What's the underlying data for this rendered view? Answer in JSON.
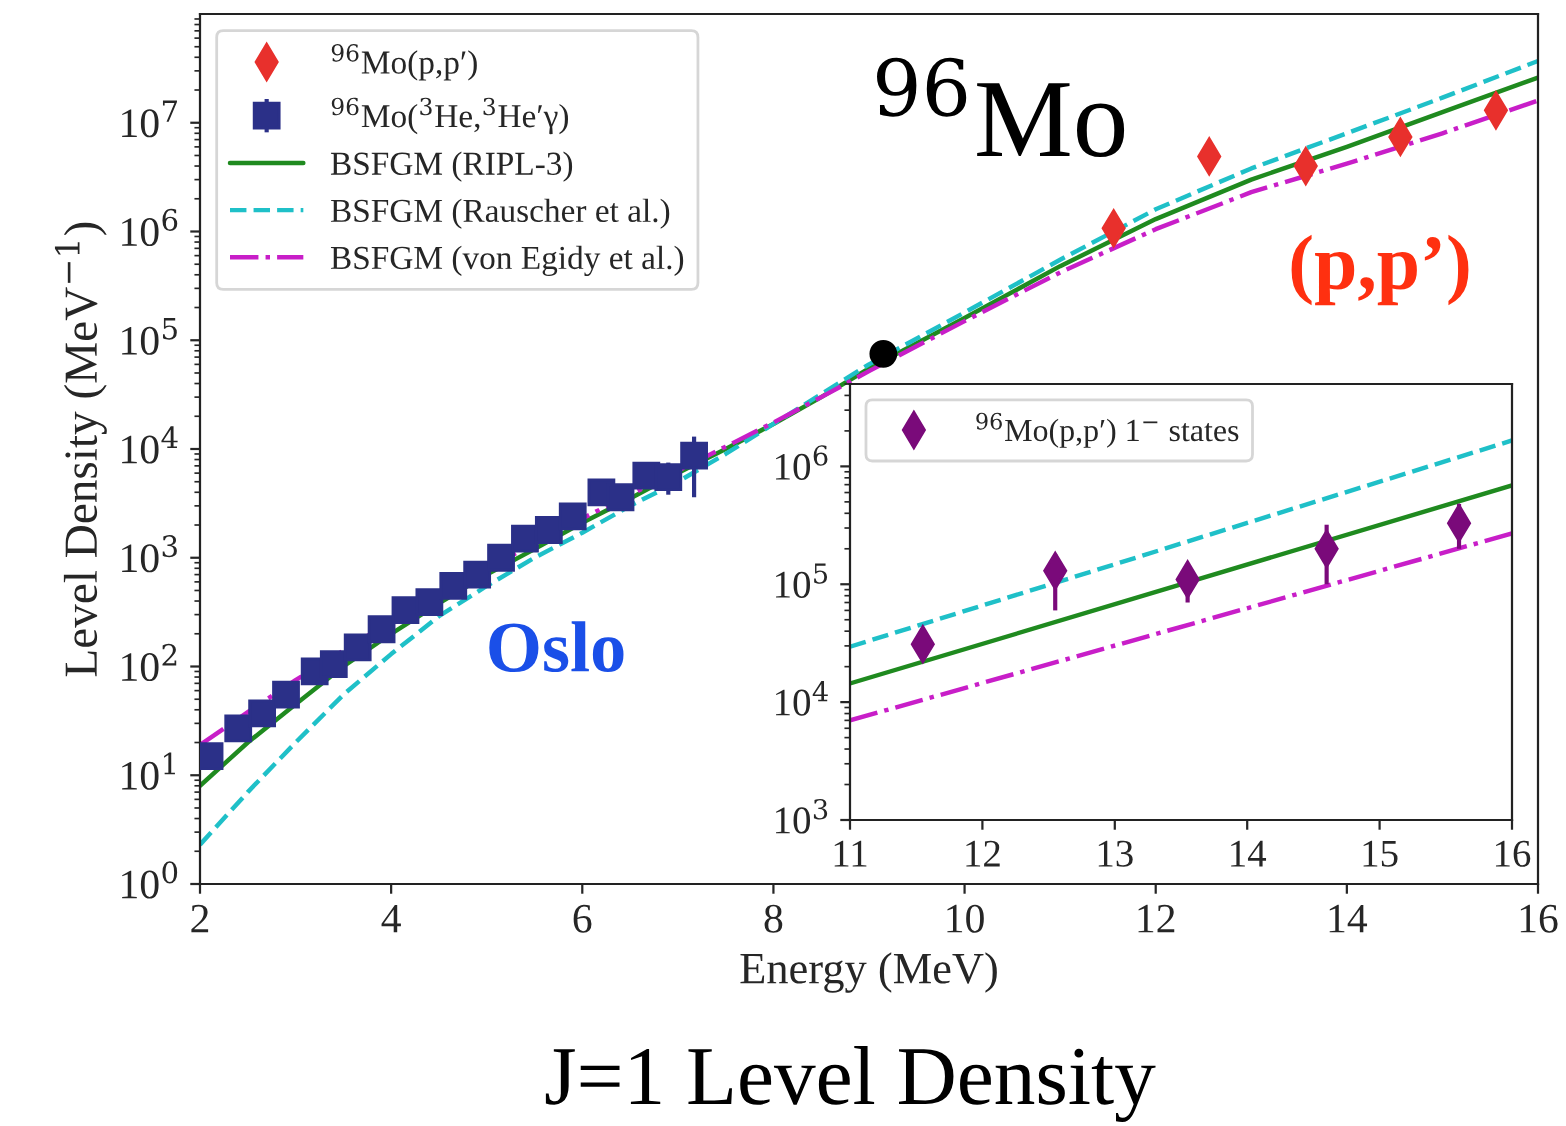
{
  "chart_data": [
    {
      "type": "scatter",
      "xlabel": "Energy (MeV)",
      "ylabel": "Level Density (MeV$^{−1}$)",
      "log": "y",
      "grid": false,
      "legend": "top left",
      "xlim": [
        2,
        16
      ],
      "xticks": [
        2,
        4,
        6,
        8,
        10,
        12,
        14,
        16
      ],
      "ylim": [
        1,
        100000000
      ],
      "yticks": [
        {
          "value": 1,
          "label": "10$^{0}$"
        },
        {
          "value": 10,
          "label": "10$^{1}$"
        },
        {
          "value": 100,
          "label": "10$^{2}$"
        },
        {
          "value": 1000,
          "label": "10$^{3}$"
        },
        {
          "value": 10000,
          "label": "10$^{4}$"
        },
        {
          "value": 100000,
          "label": "10$^{5}$"
        },
        {
          "value": 1000000,
          "label": "10$^{6}$"
        },
        {
          "value": 10000000,
          "label": "10$^{7}$"
        }
      ],
      "annotations": [
        "$^{96}$Mo",
        "(p,p’)",
        "Oslo",
        "J=1 Level Density"
      ],
      "series": [
        {
          "name": "$^{96}$Mo(p,p′)",
          "marker": "diamond",
          "color": "#e8302c",
          "x": [
            11.56,
            12.56,
            13.57,
            14.56,
            15.56
          ],
          "values": [
            1070000,
            4900000,
            4000000,
            7400000,
            13000000
          ]
        },
        {
          "name": "$^{96}$Mo($^{3}$He,$^{3}$He′γ)",
          "marker": "square",
          "color": "#2b3088",
          "x": [
            2.1,
            2.4,
            2.65,
            2.9,
            3.2,
            3.4,
            3.65,
            3.9,
            4.15,
            4.4,
            4.65,
            4.9,
            5.15,
            5.4,
            5.65,
            5.9,
            6.2,
            6.4,
            6.67,
            6.9,
            7.17
          ],
          "values": [
            15,
            27,
            37,
            55,
            90,
            105,
            150,
            220,
            330,
            390,
            550,
            700,
            1000,
            1500,
            1800,
            2400,
            4000,
            3600,
            5700,
            5500,
            8700
          ],
          "errors": [
            null,
            null,
            null,
            null,
            null,
            null,
            null,
            null,
            null,
            null,
            null,
            null,
            null,
            null,
            null,
            null,
            null,
            null,
            [
              4500,
              7000
            ],
            [
              3800,
              7500
            ],
            [
              3600,
              13000
            ]
          ]
        },
        {
          "marker": "circle",
          "color": "#000000",
          "x": [
            9.15
          ],
          "values": [
            75000
          ]
        },
        {
          "name": "BSFGM (RIPL-3)",
          "type": "line",
          "line_style": "solid",
          "color": "#1f8a1f",
          "x": [
            2,
            2.5,
            3,
            3.5,
            4,
            4.5,
            5,
            5.5,
            6,
            6.5,
            7,
            7.5,
            8,
            8.5,
            9,
            10,
            11,
            12,
            13,
            14,
            15,
            16
          ],
          "values": [
            8,
            20,
            45,
            100,
            200,
            380,
            700,
            1200,
            2100,
            3500,
            6000,
            10000,
            17000,
            30000,
            55000,
            160000,
            480000,
            1300000,
            3000000,
            6000000,
            12500000,
            26000000
          ]
        },
        {
          "name": "BSFGM (Rauscher et al.)",
          "type": "line",
          "line_style": "dashed",
          "color": "#1fc0c8",
          "x": [
            2,
            2.5,
            3,
            3.5,
            4,
            4.5,
            5,
            5.5,
            6,
            6.5,
            7,
            7.5,
            8,
            8.5,
            9,
            10,
            11,
            12,
            13,
            14,
            15,
            16
          ],
          "values": [
            2.3,
            7,
            20,
            55,
            130,
            290,
            550,
            1000,
            1700,
            3000,
            5000,
            9000,
            17000,
            32000,
            60000,
            180000,
            550000,
            1600000,
            3800000,
            8000000,
            17000000,
            37000000
          ]
        },
        {
          "name": "BSFGM (von Egidy et al.)",
          "type": "line",
          "line_style": "dashdot",
          "color": "#c81ec8",
          "x": [
            2,
            2.5,
            3,
            3.5,
            4,
            4.5,
            5,
            5.5,
            6,
            6.5,
            7,
            7.5,
            8,
            8.5,
            9,
            10,
            11,
            12,
            13,
            14,
            15,
            16
          ],
          "values": [
            19,
            38,
            75,
            140,
            260,
            460,
            800,
            1350,
            2300,
            3800,
            6300,
            10500,
            17500,
            30000,
            52000,
            150000,
            420000,
            1050000,
            2300000,
            4200000,
            8000000,
            16000000
          ]
        }
      ]
    },
    {
      "type": "scatter",
      "log": "y",
      "grid": false,
      "legend": "top left",
      "xlim": [
        11,
        16
      ],
      "xticks": [
        11,
        12,
        13,
        14,
        15,
        16
      ],
      "ylim": [
        1000,
        5000000
      ],
      "yticks": [
        {
          "value": 1000,
          "label": "10$^{3}$"
        },
        {
          "value": 10000,
          "label": "10$^{4}$"
        },
        {
          "value": 100000,
          "label": "10$^{5}$"
        },
        {
          "value": 1000000,
          "label": "10$^{6}$"
        }
      ],
      "series": [
        {
          "name": "$^{96}$Mo(p,p′) 1$^{−}$ states",
          "marker": "diamond",
          "color": "#7a0a7a",
          "x": [
            11.55,
            12.55,
            13.55,
            14.6,
            15.6
          ],
          "values": [
            31000,
            130000,
            110000,
            200000,
            330000
          ],
          "errors": [
            [
              24000,
              40000
            ],
            [
              60000,
              180000
            ],
            [
              70000,
              130000
            ],
            [
              100000,
              320000
            ],
            [
              200000,
              480000
            ]
          ]
        },
        {
          "type": "line",
          "line_style": "solid",
          "color": "#1f8a1f",
          "x": [
            11,
            16
          ],
          "values": [
            14400,
            690000
          ]
        },
        {
          "type": "line",
          "line_style": "dashed",
          "color": "#1fc0c8",
          "x": [
            11,
            16
          ],
          "values": [
            29500,
            1660000
          ]
        },
        {
          "type": "line",
          "line_style": "dashdot",
          "color": "#c81ec8",
          "x": [
            11,
            16
          ],
          "values": [
            7000,
            270000
          ]
        }
      ]
    }
  ]
}
